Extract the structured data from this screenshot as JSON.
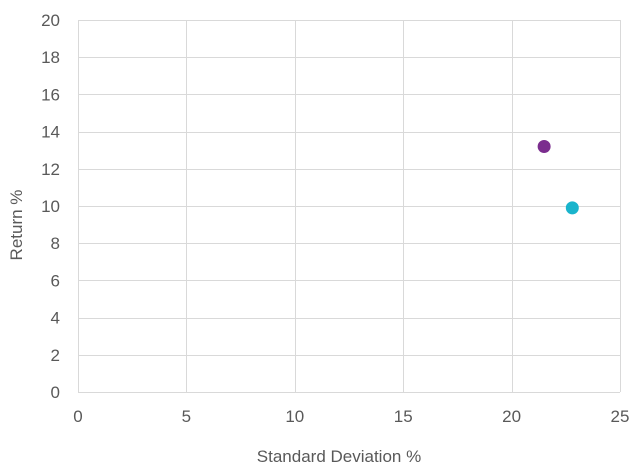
{
  "chart_data": {
    "type": "scatter",
    "title": "",
    "xlabel": "Standard Deviation %",
    "ylabel": "Return %",
    "xlim": [
      0,
      25
    ],
    "ylim": [
      0,
      20
    ],
    "x_ticks": [
      0,
      5,
      10,
      15,
      20,
      25
    ],
    "y_ticks": [
      0,
      2,
      4,
      6,
      8,
      10,
      12,
      14,
      16,
      18,
      20
    ],
    "grid": true,
    "series": [
      {
        "color": "#7b2d8e",
        "points": [
          {
            "x": 21.5,
            "y": 13.2
          }
        ]
      },
      {
        "color": "#1ab4cc",
        "points": [
          {
            "x": 22.8,
            "y": 9.9
          }
        ]
      }
    ]
  }
}
